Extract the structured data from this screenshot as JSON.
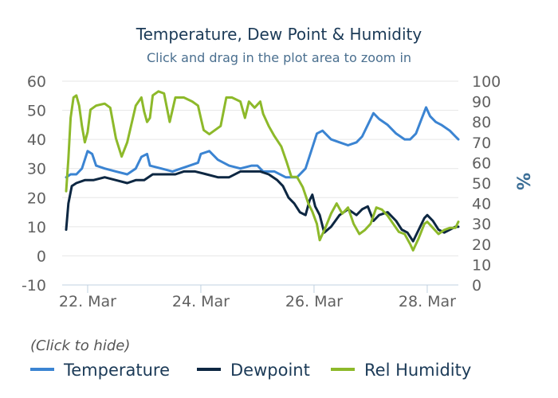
{
  "chart_data": {
    "type": "line",
    "title": "Temperature, Dew Point & Humidity",
    "subtitle": "Click and drag in the plot area to zoom in",
    "x_ticks": [
      "22. Mar",
      "24. Mar",
      "26. Mar",
      "28. Mar"
    ],
    "x_tick_days": [
      22,
      24,
      26,
      28
    ],
    "x_range": [
      21.55,
      28.55
    ],
    "y_left": {
      "ticks": [
        "60",
        "50",
        "40",
        "30",
        "20",
        "10",
        "0",
        "-10"
      ],
      "range": [
        -10,
        60
      ]
    },
    "y_right": {
      "label": "%",
      "ticks": [
        "100",
        "90",
        "80",
        "70",
        "60",
        "50",
        "40",
        "30",
        "20",
        "10",
        "0"
      ],
      "range": [
        0,
        100
      ]
    },
    "legend_hint": "(Click to hide)",
    "series": [
      {
        "name": "Temperature",
        "axis": "left",
        "color": "#3b84d2",
        "points": [
          [
            21.62,
            27
          ],
          [
            21.7,
            28
          ],
          [
            21.8,
            28
          ],
          [
            21.9,
            30
          ],
          [
            22.0,
            36
          ],
          [
            22.08,
            35
          ],
          [
            22.15,
            31
          ],
          [
            22.3,
            30
          ],
          [
            22.5,
            29
          ],
          [
            22.7,
            28
          ],
          [
            22.85,
            30
          ],
          [
            22.95,
            34
          ],
          [
            23.05,
            35
          ],
          [
            23.1,
            31
          ],
          [
            23.3,
            30
          ],
          [
            23.5,
            29
          ],
          [
            23.65,
            30
          ],
          [
            23.8,
            31
          ],
          [
            23.95,
            32
          ],
          [
            24.0,
            35
          ],
          [
            24.15,
            36
          ],
          [
            24.3,
            33
          ],
          [
            24.5,
            31
          ],
          [
            24.7,
            30
          ],
          [
            24.9,
            31
          ],
          [
            25.0,
            31
          ],
          [
            25.1,
            29
          ],
          [
            25.3,
            29
          ],
          [
            25.5,
            27
          ],
          [
            25.7,
            27
          ],
          [
            25.85,
            30
          ],
          [
            25.95,
            36
          ],
          [
            26.05,
            42
          ],
          [
            26.15,
            43
          ],
          [
            26.3,
            40
          ],
          [
            26.45,
            39
          ],
          [
            26.6,
            38
          ],
          [
            26.75,
            39
          ],
          [
            26.85,
            41
          ],
          [
            26.95,
            45
          ],
          [
            27.05,
            49
          ],
          [
            27.15,
            47
          ],
          [
            27.3,
            45
          ],
          [
            27.45,
            42
          ],
          [
            27.6,
            40
          ],
          [
            27.7,
            40
          ],
          [
            27.8,
            42
          ],
          [
            27.9,
            47
          ],
          [
            27.98,
            51
          ],
          [
            28.05,
            48
          ],
          [
            28.15,
            46
          ],
          [
            28.25,
            45
          ],
          [
            28.4,
            43
          ],
          [
            28.5,
            41
          ],
          [
            28.55,
            40
          ]
        ]
      },
      {
        "name": "Dewpoint",
        "axis": "left",
        "color": "#0d2742",
        "points": [
          [
            21.62,
            9
          ],
          [
            21.66,
            18
          ],
          [
            21.72,
            24
          ],
          [
            21.8,
            25
          ],
          [
            21.95,
            26
          ],
          [
            22.1,
            26
          ],
          [
            22.3,
            27
          ],
          [
            22.5,
            26
          ],
          [
            22.7,
            25
          ],
          [
            22.85,
            26
          ],
          [
            23.0,
            26
          ],
          [
            23.15,
            28
          ],
          [
            23.35,
            28
          ],
          [
            23.55,
            28
          ],
          [
            23.7,
            29
          ],
          [
            23.9,
            29
          ],
          [
            24.1,
            28
          ],
          [
            24.3,
            27
          ],
          [
            24.5,
            27
          ],
          [
            24.7,
            29
          ],
          [
            24.9,
            29
          ],
          [
            25.05,
            29
          ],
          [
            25.2,
            28
          ],
          [
            25.35,
            26
          ],
          [
            25.45,
            24
          ],
          [
            25.55,
            20
          ],
          [
            25.65,
            18
          ],
          [
            25.75,
            15
          ],
          [
            25.85,
            14
          ],
          [
            25.92,
            19
          ],
          [
            25.97,
            21
          ],
          [
            26.02,
            17
          ],
          [
            26.1,
            14
          ],
          [
            26.18,
            8
          ],
          [
            26.3,
            10
          ],
          [
            26.45,
            14
          ],
          [
            26.6,
            16
          ],
          [
            26.75,
            14
          ],
          [
            26.85,
            16
          ],
          [
            26.95,
            17
          ],
          [
            27.05,
            12
          ],
          [
            27.15,
            14
          ],
          [
            27.3,
            15
          ],
          [
            27.45,
            12
          ],
          [
            27.55,
            9
          ],
          [
            27.65,
            8
          ],
          [
            27.75,
            5
          ],
          [
            27.85,
            9
          ],
          [
            27.95,
            13
          ],
          [
            28.0,
            14
          ],
          [
            28.1,
            12
          ],
          [
            28.2,
            9
          ],
          [
            28.3,
            8
          ],
          [
            28.4,
            9
          ],
          [
            28.5,
            10
          ],
          [
            28.55,
            10
          ]
        ]
      },
      {
        "name": "Rel Humidity",
        "axis": "right",
        "color": "#8db92a",
        "points": [
          [
            21.62,
            46
          ],
          [
            21.66,
            62
          ],
          [
            21.7,
            82
          ],
          [
            21.75,
            92
          ],
          [
            21.8,
            93
          ],
          [
            21.85,
            88
          ],
          [
            21.9,
            78
          ],
          [
            21.95,
            70
          ],
          [
            22.0,
            75
          ],
          [
            22.05,
            86
          ],
          [
            22.15,
            88
          ],
          [
            22.3,
            89
          ],
          [
            22.4,
            87
          ],
          [
            22.5,
            72
          ],
          [
            22.6,
            63
          ],
          [
            22.7,
            70
          ],
          [
            22.85,
            88
          ],
          [
            22.95,
            92
          ],
          [
            23.0,
            85
          ],
          [
            23.05,
            80
          ],
          [
            23.1,
            82
          ],
          [
            23.15,
            93
          ],
          [
            23.25,
            95
          ],
          [
            23.35,
            94
          ],
          [
            23.45,
            80
          ],
          [
            23.55,
            92
          ],
          [
            23.7,
            92
          ],
          [
            23.85,
            90
          ],
          [
            23.95,
            88
          ],
          [
            24.0,
            82
          ],
          [
            24.05,
            76
          ],
          [
            24.15,
            74
          ],
          [
            24.25,
            76
          ],
          [
            24.35,
            78
          ],
          [
            24.45,
            92
          ],
          [
            24.55,
            92
          ],
          [
            24.7,
            90
          ],
          [
            24.78,
            82
          ],
          [
            24.85,
            90
          ],
          [
            24.95,
            87
          ],
          [
            25.05,
            90
          ],
          [
            25.1,
            84
          ],
          [
            25.2,
            78
          ],
          [
            25.3,
            73
          ],
          [
            25.42,
            68
          ],
          [
            25.52,
            60
          ],
          [
            25.6,
            53
          ],
          [
            25.7,
            53
          ],
          [
            25.8,
            48
          ],
          [
            25.9,
            40
          ],
          [
            25.97,
            36
          ],
          [
            26.05,
            30
          ],
          [
            26.1,
            22
          ],
          [
            26.2,
            28
          ],
          [
            26.3,
            35
          ],
          [
            26.4,
            40
          ],
          [
            26.5,
            35
          ],
          [
            26.6,
            38
          ],
          [
            26.7,
            30
          ],
          [
            26.8,
            25
          ],
          [
            26.9,
            27
          ],
          [
            27.0,
            30
          ],
          [
            27.1,
            38
          ],
          [
            27.2,
            37
          ],
          [
            27.3,
            34
          ],
          [
            27.4,
            30
          ],
          [
            27.5,
            26
          ],
          [
            27.6,
            25
          ],
          [
            27.7,
            20
          ],
          [
            27.75,
            17
          ],
          [
            27.85,
            23
          ],
          [
            27.95,
            30
          ],
          [
            28.0,
            31
          ],
          [
            28.1,
            28
          ],
          [
            28.2,
            25
          ],
          [
            28.3,
            27
          ],
          [
            28.4,
            28
          ],
          [
            28.5,
            28
          ],
          [
            28.55,
            31
          ]
        ]
      }
    ]
  }
}
